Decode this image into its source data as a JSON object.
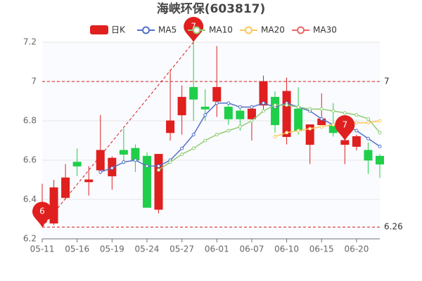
{
  "chart_data": {
    "type": "candlestick",
    "title": "海峡环保(603817)",
    "categories": [
      "05-11",
      null,
      null,
      "05-16",
      null,
      null,
      "05-19",
      null,
      null,
      "05-24",
      null,
      null,
      "05-27",
      null,
      null,
      "06-01",
      null,
      null,
      "06-07",
      null,
      null,
      "06-10",
      null,
      null,
      "06-15",
      null,
      null,
      "06-20",
      null,
      null
    ],
    "up_color": "#e01f1f",
    "down_color": "#1fcf4a",
    "candles": {
      "name": "日K",
      "open": [
        6.33,
        6.28,
        6.41,
        6.59,
        6.49,
        6.55,
        6.52,
        6.65,
        6.66,
        6.62,
        6.35,
        6.74,
        6.83,
        6.97,
        6.87,
        6.9,
        6.87,
        6.85,
        6.81,
        6.88,
        6.92,
        6.72,
        6.86,
        6.68,
        6.78,
        6.78,
        6.68,
        6.67,
        6.65,
        6.62
      ],
      "close": [
        6.35,
        6.46,
        6.51,
        6.57,
        6.5,
        6.65,
        6.61,
        6.63,
        6.6,
        6.36,
        6.63,
        6.8,
        6.92,
        6.91,
        6.86,
        6.97,
        6.81,
        6.81,
        6.86,
        7.0,
        6.78,
        6.95,
        6.75,
        6.78,
        6.81,
        6.74,
        6.7,
        6.72,
        6.6,
        6.58
      ],
      "high": [
        6.48,
        6.5,
        6.58,
        6.66,
        6.57,
        6.83,
        6.62,
        6.76,
        6.68,
        6.64,
        6.63,
        7.06,
        6.98,
        7.2,
        6.96,
        7.18,
        6.88,
        6.87,
        6.88,
        7.03,
        6.95,
        7.02,
        6.97,
        6.78,
        6.94,
        6.89,
        6.75,
        6.73,
        6.69,
        6.63
      ],
      "low": [
        6.26,
        6.27,
        6.4,
        6.52,
        6.42,
        6.53,
        6.45,
        6.58,
        6.54,
        6.36,
        6.33,
        6.7,
        6.73,
        6.8,
        6.8,
        6.82,
        6.78,
        6.75,
        6.7,
        6.85,
        6.74,
        6.68,
        6.73,
        6.58,
        6.76,
        6.72,
        6.58,
        6.65,
        6.53,
        6.51
      ]
    },
    "series": [
      {
        "name": "MA5",
        "color": "#5470c6",
        "values": [
          null,
          null,
          null,
          null,
          null,
          6.54,
          6.56,
          6.59,
          6.6,
          6.57,
          6.57,
          6.6,
          6.66,
          6.73,
          6.83,
          6.89,
          6.89,
          6.87,
          6.87,
          6.89,
          6.87,
          6.89,
          6.87,
          6.85,
          6.81,
          6.78,
          6.78,
          6.75,
          6.71,
          6.67
        ]
      },
      {
        "name": "MA10",
        "color": "#91cc75",
        "values": [
          null,
          null,
          null,
          null,
          null,
          null,
          null,
          null,
          null,
          null,
          6.55,
          6.59,
          6.63,
          6.66,
          6.7,
          6.73,
          6.75,
          6.77,
          6.8,
          6.85,
          6.88,
          6.88,
          6.87,
          6.86,
          6.86,
          6.85,
          6.84,
          6.83,
          6.81,
          6.74
        ]
      },
      {
        "name": "MA20",
        "color": "#fac858",
        "values": [
          null,
          null,
          null,
          null,
          null,
          null,
          null,
          null,
          null,
          null,
          null,
          null,
          null,
          null,
          null,
          null,
          null,
          null,
          null,
          null,
          6.72,
          6.74,
          6.75,
          6.76,
          6.77,
          6.78,
          6.79,
          6.79,
          6.79,
          6.8
        ]
      },
      {
        "name": "MA30",
        "color": "#ee6666",
        "values": [
          null,
          null,
          null,
          null,
          null,
          null,
          null,
          null,
          null,
          null,
          null,
          null,
          null,
          null,
          null,
          null,
          null,
          null,
          null,
          null,
          null,
          null,
          null,
          null,
          null,
          null,
          null,
          null,
          null,
          null
        ]
      }
    ],
    "ylim": [
      6.2,
      7.2
    ],
    "yticks": [
      6.2,
      6.4,
      6.6,
      6.8,
      7,
      7.2
    ],
    "grid": true,
    "mark_lines": [
      7,
      6.26
    ],
    "mark_points": [
      {
        "label": "6",
        "value": 6.26,
        "index": 0
      },
      {
        "label": "7",
        "value": 7.2,
        "index": 13
      },
      {
        "label": "7",
        "value": 6.7,
        "index": 26
      }
    ]
  }
}
